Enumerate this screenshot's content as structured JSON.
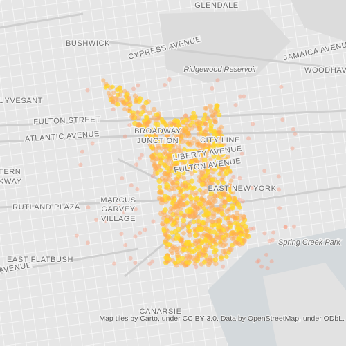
{
  "map": {
    "labels": [
      "GLENDALE",
      "BUSHWICK",
      "CYPRESS AVENUE",
      "JAMAICA AVENUE",
      "Ridgewood Reservoir",
      "WOODHAV",
      "UYVESANT",
      "FULTON STREET",
      "ATLANTIC AVENUE",
      "BROADWAY",
      "JUNCTION",
      "CITY LINE",
      "LIBERTY AVENUE",
      "FULTON AVENUE",
      "TERN",
      "KWAY",
      "EAST NEW YORK",
      "RUTLAND PLAZA",
      "MARCUS",
      "GARVEY",
      "VILLAGE",
      "Spring Creek Park",
      "EAST FLATBUSH",
      "AVENUE",
      "CANARSIE"
    ],
    "attribution": "Map tiles by Carto, under CC BY 3.0. Data by OpenStreetMap, under ODbL."
  }
}
